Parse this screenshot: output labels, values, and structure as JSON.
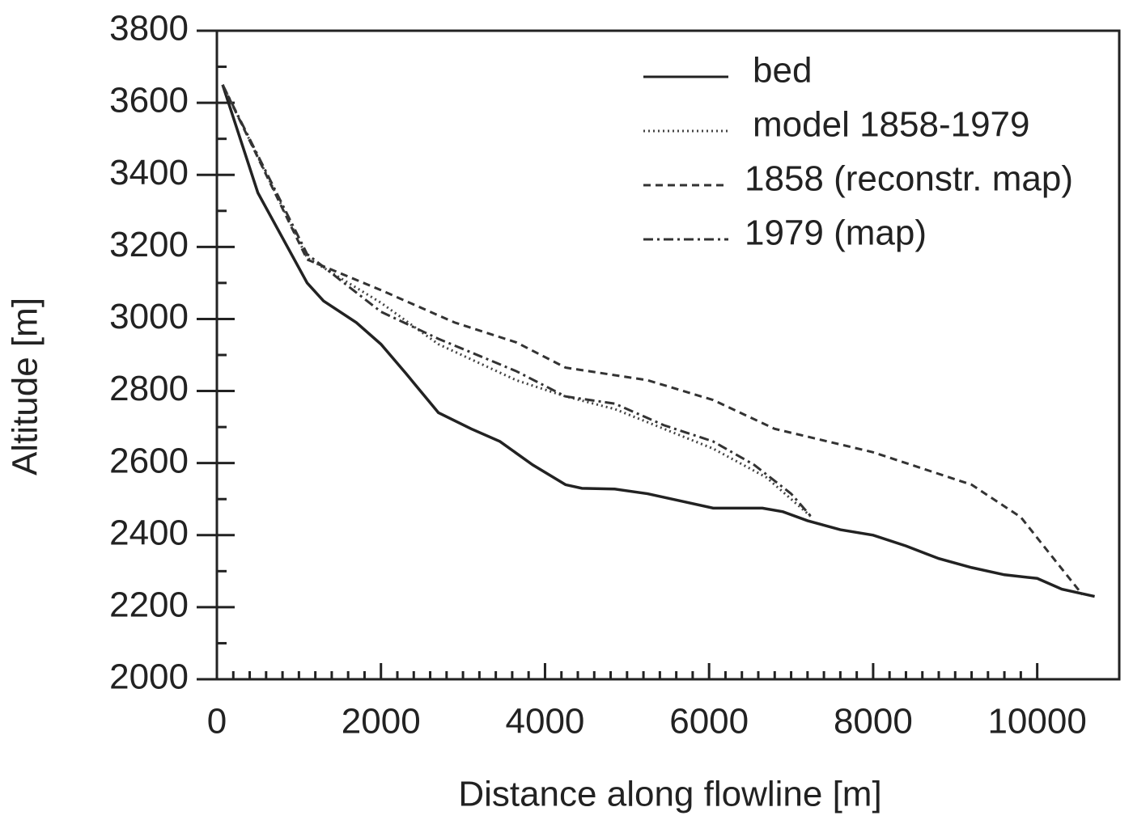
{
  "chart_data": {
    "type": "line",
    "xlabel": "Distance along flowline   [m]",
    "ylabel": "Altitude   [m]",
    "xlim": [
      0,
      11000
    ],
    "ylim": [
      2000,
      3800
    ],
    "xticks": [
      0,
      2000,
      4000,
      6000,
      8000,
      10000
    ],
    "yticks": [
      2000,
      2200,
      2400,
      2600,
      2800,
      3000,
      3200,
      3400,
      3600,
      3800
    ],
    "legend": "upper right",
    "series": [
      {
        "name": "bed",
        "color": "#222222",
        "style": "solid",
        "x": [
          70,
          500,
          1100,
          1300,
          1700,
          2000,
          2300,
          2700,
          3100,
          3450,
          3850,
          4250,
          4450,
          4850,
          5250,
          5650,
          6050,
          6650,
          6900,
          7200,
          7600,
          8000,
          8400,
          8800,
          9200,
          9600,
          10000,
          10300,
          10700
        ],
        "values": [
          3650,
          3350,
          3100,
          3050,
          2990,
          2930,
          2850,
          2740,
          2695,
          2660,
          2595,
          2540,
          2530,
          2528,
          2515,
          2495,
          2475,
          2475,
          2465,
          2440,
          2415,
          2400,
          2370,
          2335,
          2310,
          2290,
          2280,
          2250,
          2230
        ]
      },
      {
        "name": "model 1858-1979",
        "color": "#444444",
        "style": "dotted",
        "x": [
          70,
          1100,
          2000,
          2700,
          3650,
          4250,
          4850,
          6050,
          6700,
          7250
        ],
        "values": [
          3650,
          3170,
          3045,
          2930,
          2830,
          2785,
          2750,
          2640,
          2560,
          2450
        ]
      },
      {
        "name": "1858 (reconstr. map)",
        "color": "#333333",
        "style": "dashed",
        "x": [
          70,
          1100,
          2000,
          2900,
          3650,
          4250,
          5250,
          6050,
          6800,
          8000,
          9200,
          9800,
          10200,
          10550
        ],
        "values": [
          3650,
          3165,
          3080,
          2990,
          2935,
          2865,
          2830,
          2775,
          2695,
          2630,
          2540,
          2450,
          2335,
          2235
        ]
      },
      {
        "name": "1979 (map)",
        "color": "#333333",
        "style": "dashdot",
        "x": [
          70,
          1100,
          2000,
          2700,
          3650,
          4250,
          4850,
          5450,
          6050,
          6550,
          7000,
          7250
        ],
        "values": [
          3650,
          3180,
          3020,
          2945,
          2855,
          2785,
          2765,
          2705,
          2660,
          2595,
          2515,
          2450
        ]
      }
    ]
  }
}
